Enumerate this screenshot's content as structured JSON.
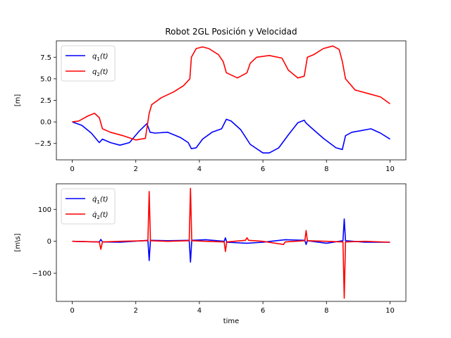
{
  "chart_data": [
    {
      "type": "line",
      "title": "Robot 2GL Posición y Velocidad",
      "xlabel": "",
      "ylabel": "[m]",
      "xlim": [
        -0.5,
        10.5
      ],
      "ylim": [
        -4.4,
        9.4
      ],
      "xticks": [
        0,
        2,
        4,
        6,
        8,
        10
      ],
      "yticks": [
        -2.5,
        0.0,
        2.5,
        5.0,
        7.5
      ],
      "ytick_labels": [
        "−2.5",
        "0.0",
        "2.5",
        "5.0",
        "7.5"
      ],
      "grid": false,
      "legend_position": "upper-left",
      "series": [
        {
          "name": "q1(t)",
          "legend_main": "q",
          "legend_sub": "1",
          "legend_suffix": "(t)",
          "color": "#0000ff",
          "x": [
            0,
            0.3,
            0.6,
            0.85,
            0.95,
            1.2,
            1.5,
            1.8,
            2.1,
            2.35,
            2.45,
            2.6,
            3.0,
            3.4,
            3.65,
            3.75,
            3.9,
            4.1,
            4.4,
            4.7,
            4.85,
            5.0,
            5.3,
            5.6,
            6.0,
            6.2,
            6.5,
            6.8,
            7.1,
            7.3,
            7.35,
            7.5,
            7.9,
            8.3,
            8.5,
            8.6,
            8.8,
            9.1,
            9.4,
            9.7,
            10.0
          ],
          "y": [
            0.0,
            -0.4,
            -1.3,
            -2.4,
            -2.0,
            -2.4,
            -2.7,
            -2.4,
            -1.1,
            -0.2,
            -1.2,
            -1.3,
            -1.2,
            -1.8,
            -2.4,
            -3.1,
            -3.0,
            -2.0,
            -1.2,
            -0.8,
            0.3,
            0.1,
            -0.9,
            -2.6,
            -3.6,
            -3.6,
            -3.0,
            -1.5,
            -0.1,
            0.2,
            -0.1,
            -0.6,
            -1.9,
            -3.0,
            -3.2,
            -1.6,
            -1.2,
            -1.0,
            -0.8,
            -1.3,
            -2.0
          ]
        },
        {
          "name": "q2(t)",
          "legend_main": "q",
          "legend_sub": "2",
          "legend_suffix": "(t)",
          "color": "#ff0000",
          "x": [
            0,
            0.2,
            0.5,
            0.7,
            0.85,
            0.95,
            1.2,
            1.6,
            2.0,
            2.3,
            2.42,
            2.5,
            2.8,
            3.2,
            3.5,
            3.7,
            3.75,
            3.9,
            4.1,
            4.3,
            4.6,
            4.75,
            4.85,
            5.2,
            5.5,
            5.6,
            5.8,
            6.2,
            6.6,
            6.8,
            7.1,
            7.3,
            7.4,
            7.6,
            7.9,
            8.2,
            8.4,
            8.5,
            8.6,
            8.9,
            9.3,
            9.7,
            10.0
          ],
          "y": [
            0.0,
            0.1,
            0.7,
            1.0,
            0.5,
            -0.8,
            -1.2,
            -1.6,
            -2.1,
            -1.9,
            1.0,
            2.0,
            2.8,
            3.5,
            4.2,
            5.0,
            7.5,
            8.5,
            8.7,
            8.5,
            7.8,
            7.0,
            5.7,
            5.1,
            5.7,
            6.8,
            7.5,
            7.7,
            7.4,
            6.0,
            5.1,
            5.3,
            7.5,
            7.8,
            8.5,
            8.8,
            8.4,
            7.0,
            5.0,
            3.7,
            3.3,
            2.9,
            2.1
          ]
        }
      ]
    },
    {
      "type": "line",
      "title": "",
      "xlabel": "time",
      "ylabel": "[m\\s]",
      "xlim": [
        -0.5,
        10.5
      ],
      "ylim": [
        -188,
        180
      ],
      "xticks": [
        0,
        2,
        4,
        6,
        8,
        10
      ],
      "yticks": [
        -100,
        0,
        100
      ],
      "ytick_labels": [
        "−100",
        "0",
        "100"
      ],
      "grid": false,
      "legend_position": "upper-left",
      "series": [
        {
          "name": "q̇1(t)",
          "legend_main": "q̇",
          "legend_sub": "1",
          "legend_suffix": "(t)",
          "color": "#0000ff",
          "x": [
            0,
            0.85,
            0.9,
            0.95,
            1.5,
            2.38,
            2.42,
            2.46,
            3.0,
            3.68,
            3.72,
            3.76,
            4.2,
            4.78,
            4.82,
            4.86,
            5.5,
            6.0,
            6.7,
            7.32,
            7.36,
            7.4,
            8.0,
            8.52,
            8.56,
            8.6,
            9.2,
            10.0
          ],
          "y": [
            0,
            -2,
            6,
            -2,
            -3,
            3,
            -60,
            3,
            2,
            3,
            -65,
            3,
            5,
            0,
            11,
            -3,
            -6,
            -3,
            5,
            3,
            -10,
            2,
            -6,
            2,
            70,
            2,
            -3,
            -3
          ]
        },
        {
          "name": "q̇2(t)",
          "legend_main": "q̇",
          "legend_sub": "2",
          "legend_suffix": "(t)",
          "color": "#ff0000",
          "x": [
            0,
            0.85,
            0.9,
            0.95,
            1.5,
            2.38,
            2.42,
            2.46,
            3.0,
            3.68,
            3.72,
            3.76,
            4.2,
            4.78,
            4.82,
            4.86,
            5.45,
            5.5,
            5.55,
            6.0,
            6.65,
            6.7,
            7.32,
            7.36,
            7.4,
            8.0,
            8.52,
            8.56,
            8.6,
            9.2,
            10.0
          ],
          "y": [
            0,
            -2,
            -25,
            -2,
            0,
            2,
            156,
            2,
            0,
            2,
            166,
            2,
            0,
            -2,
            -32,
            -2,
            3,
            11,
            3,
            0,
            -10,
            -2,
            2,
            34,
            2,
            0,
            -2,
            -178,
            -2,
            0,
            -3
          ]
        }
      ]
    }
  ]
}
